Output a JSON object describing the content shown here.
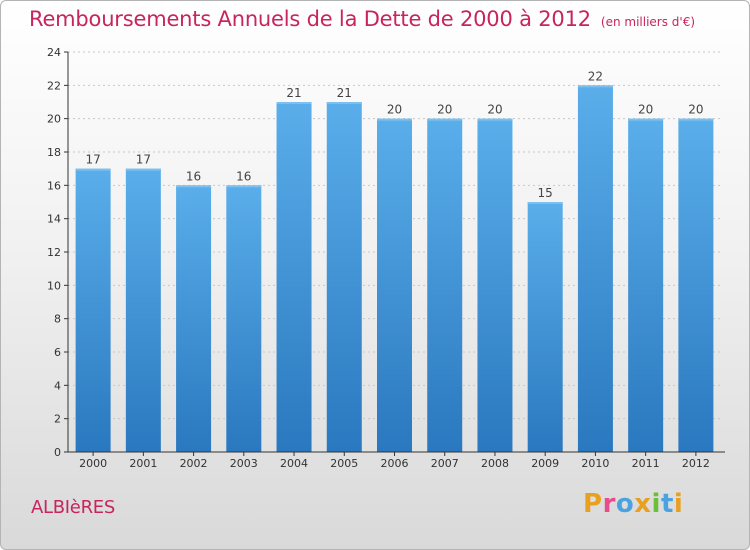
{
  "chart_data": {
    "type": "bar",
    "title": "Remboursements Annuels de la Dette de 2000 à 2012",
    "subtitle": "(en milliers d'€)",
    "categories": [
      "2000",
      "2001",
      "2002",
      "2003",
      "2004",
      "2005",
      "2006",
      "2007",
      "2008",
      "2009",
      "2010",
      "2011",
      "2012"
    ],
    "values": [
      17,
      17,
      16,
      16,
      21,
      21,
      20,
      20,
      20,
      15,
      22,
      20,
      20
    ],
    "xlabel": "",
    "ylabel": "",
    "ylim": [
      0,
      24
    ],
    "yticks": [
      0,
      2,
      4,
      6,
      8,
      10,
      12,
      14,
      16,
      18,
      20,
      22,
      24
    ],
    "grid": true,
    "bar_color": "#3d8fd8"
  },
  "footer": {
    "commune": "ALBIèRES",
    "brand": "Proxiti",
    "brand_colors": [
      "#e8a020",
      "#e84c8c",
      "#4aa3e0",
      "#e8a020",
      "#6cbf3a",
      "#4aa3e0",
      "#e8a020"
    ]
  },
  "colors": {
    "title": "#c8245e",
    "axis": "#333333",
    "grid": "#c8c8c8"
  }
}
